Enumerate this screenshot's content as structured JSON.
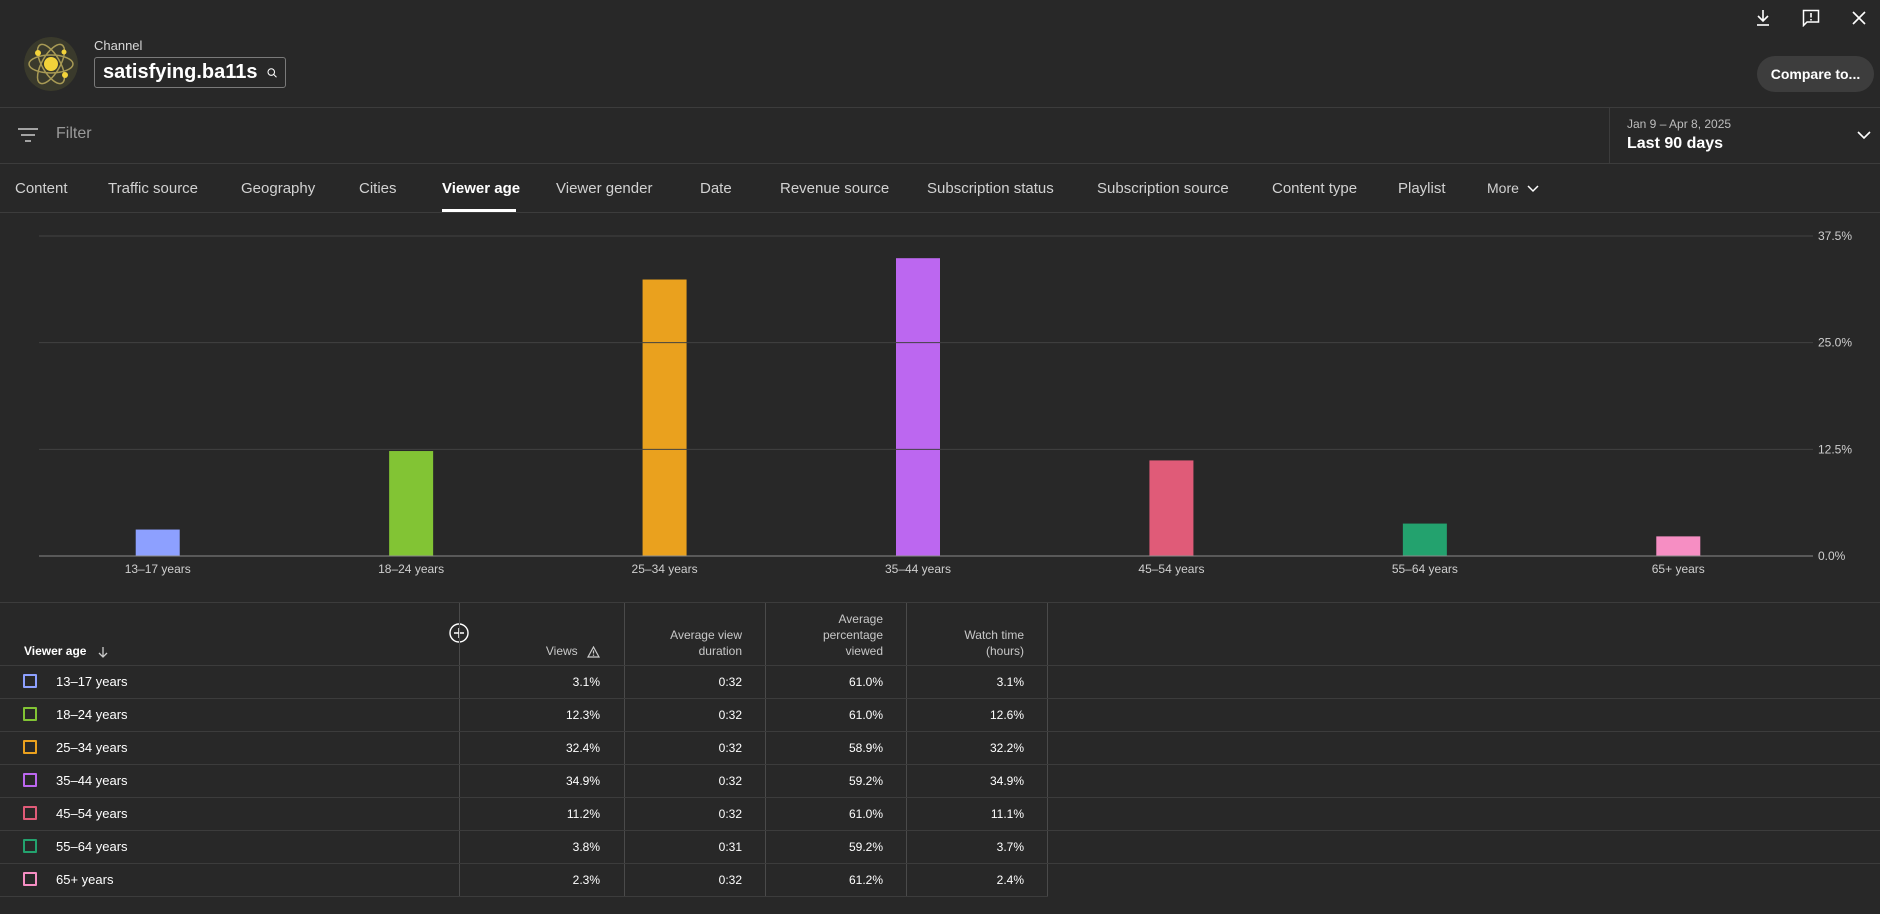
{
  "header": {
    "channel_label": "Channel",
    "channel_name": "satisfying.ba11s",
    "compare_label": "Compare to...",
    "icons": [
      "download-icon",
      "feedback-icon",
      "close-icon"
    ]
  },
  "filter": {
    "placeholder": "Filter",
    "date_range": "Jan 9 – Apr 8, 2025",
    "date_label": "Last 90 days"
  },
  "tabs": [
    {
      "label": "Content"
    },
    {
      "label": "Traffic source"
    },
    {
      "label": "Geography"
    },
    {
      "label": "Cities"
    },
    {
      "label": "Viewer age",
      "active": true
    },
    {
      "label": "Viewer gender"
    },
    {
      "label": "Date"
    },
    {
      "label": "Revenue source"
    },
    {
      "label": "Subscription status"
    },
    {
      "label": "Subscription source"
    },
    {
      "label": "Content type"
    },
    {
      "label": "Playlist"
    },
    {
      "label": "More"
    }
  ],
  "chart_data": {
    "type": "bar",
    "categories": [
      "13–17 years",
      "18–24 years",
      "25–34 years",
      "35–44 years",
      "45–54 years",
      "55–64 years",
      "65+ years"
    ],
    "values": [
      3.1,
      12.3,
      32.4,
      34.9,
      11.2,
      3.8,
      2.3
    ],
    "colors": [
      "#8da0ff",
      "#82c434",
      "#eaa11e",
      "#bc67f0",
      "#e05b78",
      "#23a26e",
      "#f68ec3"
    ],
    "ylim": [
      0,
      37.5
    ],
    "yticks": [
      "0.0%",
      "12.5%",
      "25.0%",
      "37.5%"
    ],
    "grid": true,
    "y_axis_side": "right"
  },
  "table": {
    "headers": {
      "age": "Viewer age",
      "views": "Views",
      "avg_duration": [
        "Average view",
        "duration"
      ],
      "avg_pct": [
        "Average",
        "percentage",
        "viewed"
      ],
      "watch_time": [
        "Watch time",
        "(hours)"
      ]
    },
    "rows": [
      {
        "label": "13–17 years",
        "views": "3.1%",
        "duration": "0:32",
        "pct": "61.0%",
        "watch": "3.1%"
      },
      {
        "label": "18–24 years",
        "views": "12.3%",
        "duration": "0:32",
        "pct": "61.0%",
        "watch": "12.6%"
      },
      {
        "label": "25–34 years",
        "views": "32.4%",
        "duration": "0:32",
        "pct": "58.9%",
        "watch": "32.2%"
      },
      {
        "label": "35–44 years",
        "views": "34.9%",
        "duration": "0:32",
        "pct": "59.2%",
        "watch": "34.9%"
      },
      {
        "label": "45–54 years",
        "views": "11.2%",
        "duration": "0:32",
        "pct": "61.0%",
        "watch": "11.1%"
      },
      {
        "label": "55–64 years",
        "views": "3.8%",
        "duration": "0:31",
        "pct": "59.2%",
        "watch": "3.7%"
      },
      {
        "label": "65+ years",
        "views": "2.3%",
        "duration": "0:32",
        "pct": "61.2%",
        "watch": "2.4%"
      }
    ]
  }
}
